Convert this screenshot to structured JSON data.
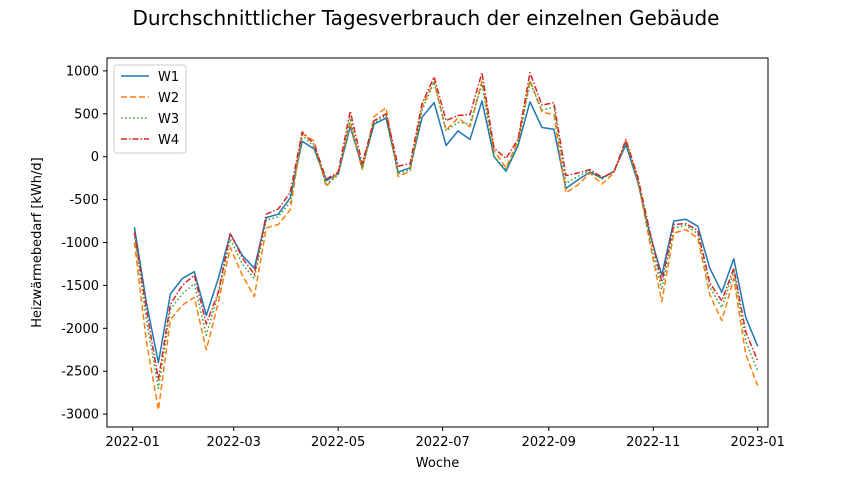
{
  "chart_data": {
    "type": "line",
    "title": "Durchschnittlicher Tagesverbrauch der einzelnen Gebäude",
    "xlabel": "Woche",
    "ylabel": "Heizwärmebedarf [kWh/d]",
    "x_ticks": [
      "2022-01",
      "2022-03",
      "2022-05",
      "2022-07",
      "2022-09",
      "2022-11",
      "2023-01"
    ],
    "y_ticks": [
      1000,
      500,
      0,
      -500,
      -1000,
      -1500,
      -2000,
      -2500,
      -3000
    ],
    "xlim": [
      "2021-12-17",
      "2023-01-07"
    ],
    "ylim": [
      -3150,
      1150
    ],
    "grid": false,
    "legend_position": "top-left",
    "x": [
      "2022-01-02",
      "2022-01-09",
      "2022-01-16",
      "2022-01-23",
      "2022-01-30",
      "2022-02-06",
      "2022-02-13",
      "2022-02-20",
      "2022-02-27",
      "2022-03-06",
      "2022-03-13",
      "2022-03-20",
      "2022-03-27",
      "2022-04-03",
      "2022-04-10",
      "2022-04-17",
      "2022-04-24",
      "2022-05-01",
      "2022-05-08",
      "2022-05-15",
      "2022-05-22",
      "2022-05-29",
      "2022-06-05",
      "2022-06-12",
      "2022-06-19",
      "2022-06-26",
      "2022-07-03",
      "2022-07-10",
      "2022-07-17",
      "2022-07-24",
      "2022-07-31",
      "2022-08-07",
      "2022-08-14",
      "2022-08-21",
      "2022-08-28",
      "2022-09-04",
      "2022-09-11",
      "2022-09-18",
      "2022-09-25",
      "2022-10-02",
      "2022-10-09",
      "2022-10-16",
      "2022-10-23",
      "2022-10-30",
      "2022-11-06",
      "2022-11-13",
      "2022-11-20",
      "2022-11-27",
      "2022-12-04",
      "2022-12-11",
      "2022-12-18",
      "2022-12-25",
      "2023-01-01"
    ],
    "series": [
      {
        "name": "W1",
        "color": "#1f77b4",
        "dash": "solid",
        "values": [
          -820,
          -1700,
          -2400,
          -1600,
          -1420,
          -1340,
          -1850,
          -1420,
          -900,
          -1150,
          -1300,
          -710,
          -670,
          -480,
          180,
          90,
          -280,
          -200,
          350,
          -120,
          380,
          450,
          -180,
          -130,
          460,
          630,
          130,
          300,
          200,
          650,
          0,
          -170,
          130,
          640,
          340,
          320,
          -370,
          -270,
          -180,
          -250,
          -170,
          140,
          -300,
          -900,
          -1380,
          -750,
          -730,
          -810,
          -1300,
          -1580,
          -1190,
          -1870,
          -2210
        ]
      },
      {
        "name": "W2",
        "color": "#ff7f0e",
        "dash": "dashed",
        "values": [
          -1000,
          -2150,
          -2950,
          -1900,
          -1730,
          -1640,
          -2250,
          -1700,
          -1060,
          -1380,
          -1630,
          -830,
          -790,
          -620,
          270,
          180,
          -350,
          -180,
          400,
          -150,
          470,
          570,
          -230,
          -170,
          590,
          870,
          310,
          450,
          350,
          880,
          70,
          -130,
          180,
          890,
          520,
          490,
          -420,
          -330,
          -190,
          -320,
          -190,
          190,
          -270,
          -1000,
          -1690,
          -890,
          -850,
          -950,
          -1610,
          -1910,
          -1420,
          -2300,
          -2670
        ]
      },
      {
        "name": "W3",
        "color": "#2ca02c",
        "dash": "dotted",
        "values": [
          -900,
          -1900,
          -2700,
          -1780,
          -1600,
          -1480,
          -2080,
          -1600,
          -960,
          -1250,
          -1420,
          -740,
          -700,
          -530,
          250,
          110,
          -320,
          -220,
          450,
          -140,
          400,
          480,
          -200,
          -150,
          540,
          870,
          300,
          400,
          380,
          850,
          0,
          -150,
          140,
          870,
          540,
          580,
          -310,
          -230,
          -160,
          -260,
          -170,
          170,
          -270,
          -950,
          -1550,
          -830,
          -800,
          -900,
          -1520,
          -1760,
          -1340,
          -2150,
          -2500
        ]
      },
      {
        "name": "W4",
        "color": "#d62728",
        "dash": "dashdot",
        "values": [
          -880,
          -1780,
          -2600,
          -1720,
          -1500,
          -1380,
          -1950,
          -1580,
          -890,
          -1180,
          -1370,
          -670,
          -610,
          -420,
          290,
          140,
          -260,
          -180,
          530,
          -80,
          420,
          500,
          -110,
          -80,
          620,
          930,
          420,
          480,
          490,
          980,
          100,
          -20,
          200,
          980,
          600,
          630,
          -220,
          -190,
          -150,
          -240,
          -180,
          200,
          -240,
          -870,
          -1460,
          -790,
          -780,
          -860,
          -1470,
          -1680,
          -1300,
          -2040,
          -2380
        ]
      }
    ]
  }
}
